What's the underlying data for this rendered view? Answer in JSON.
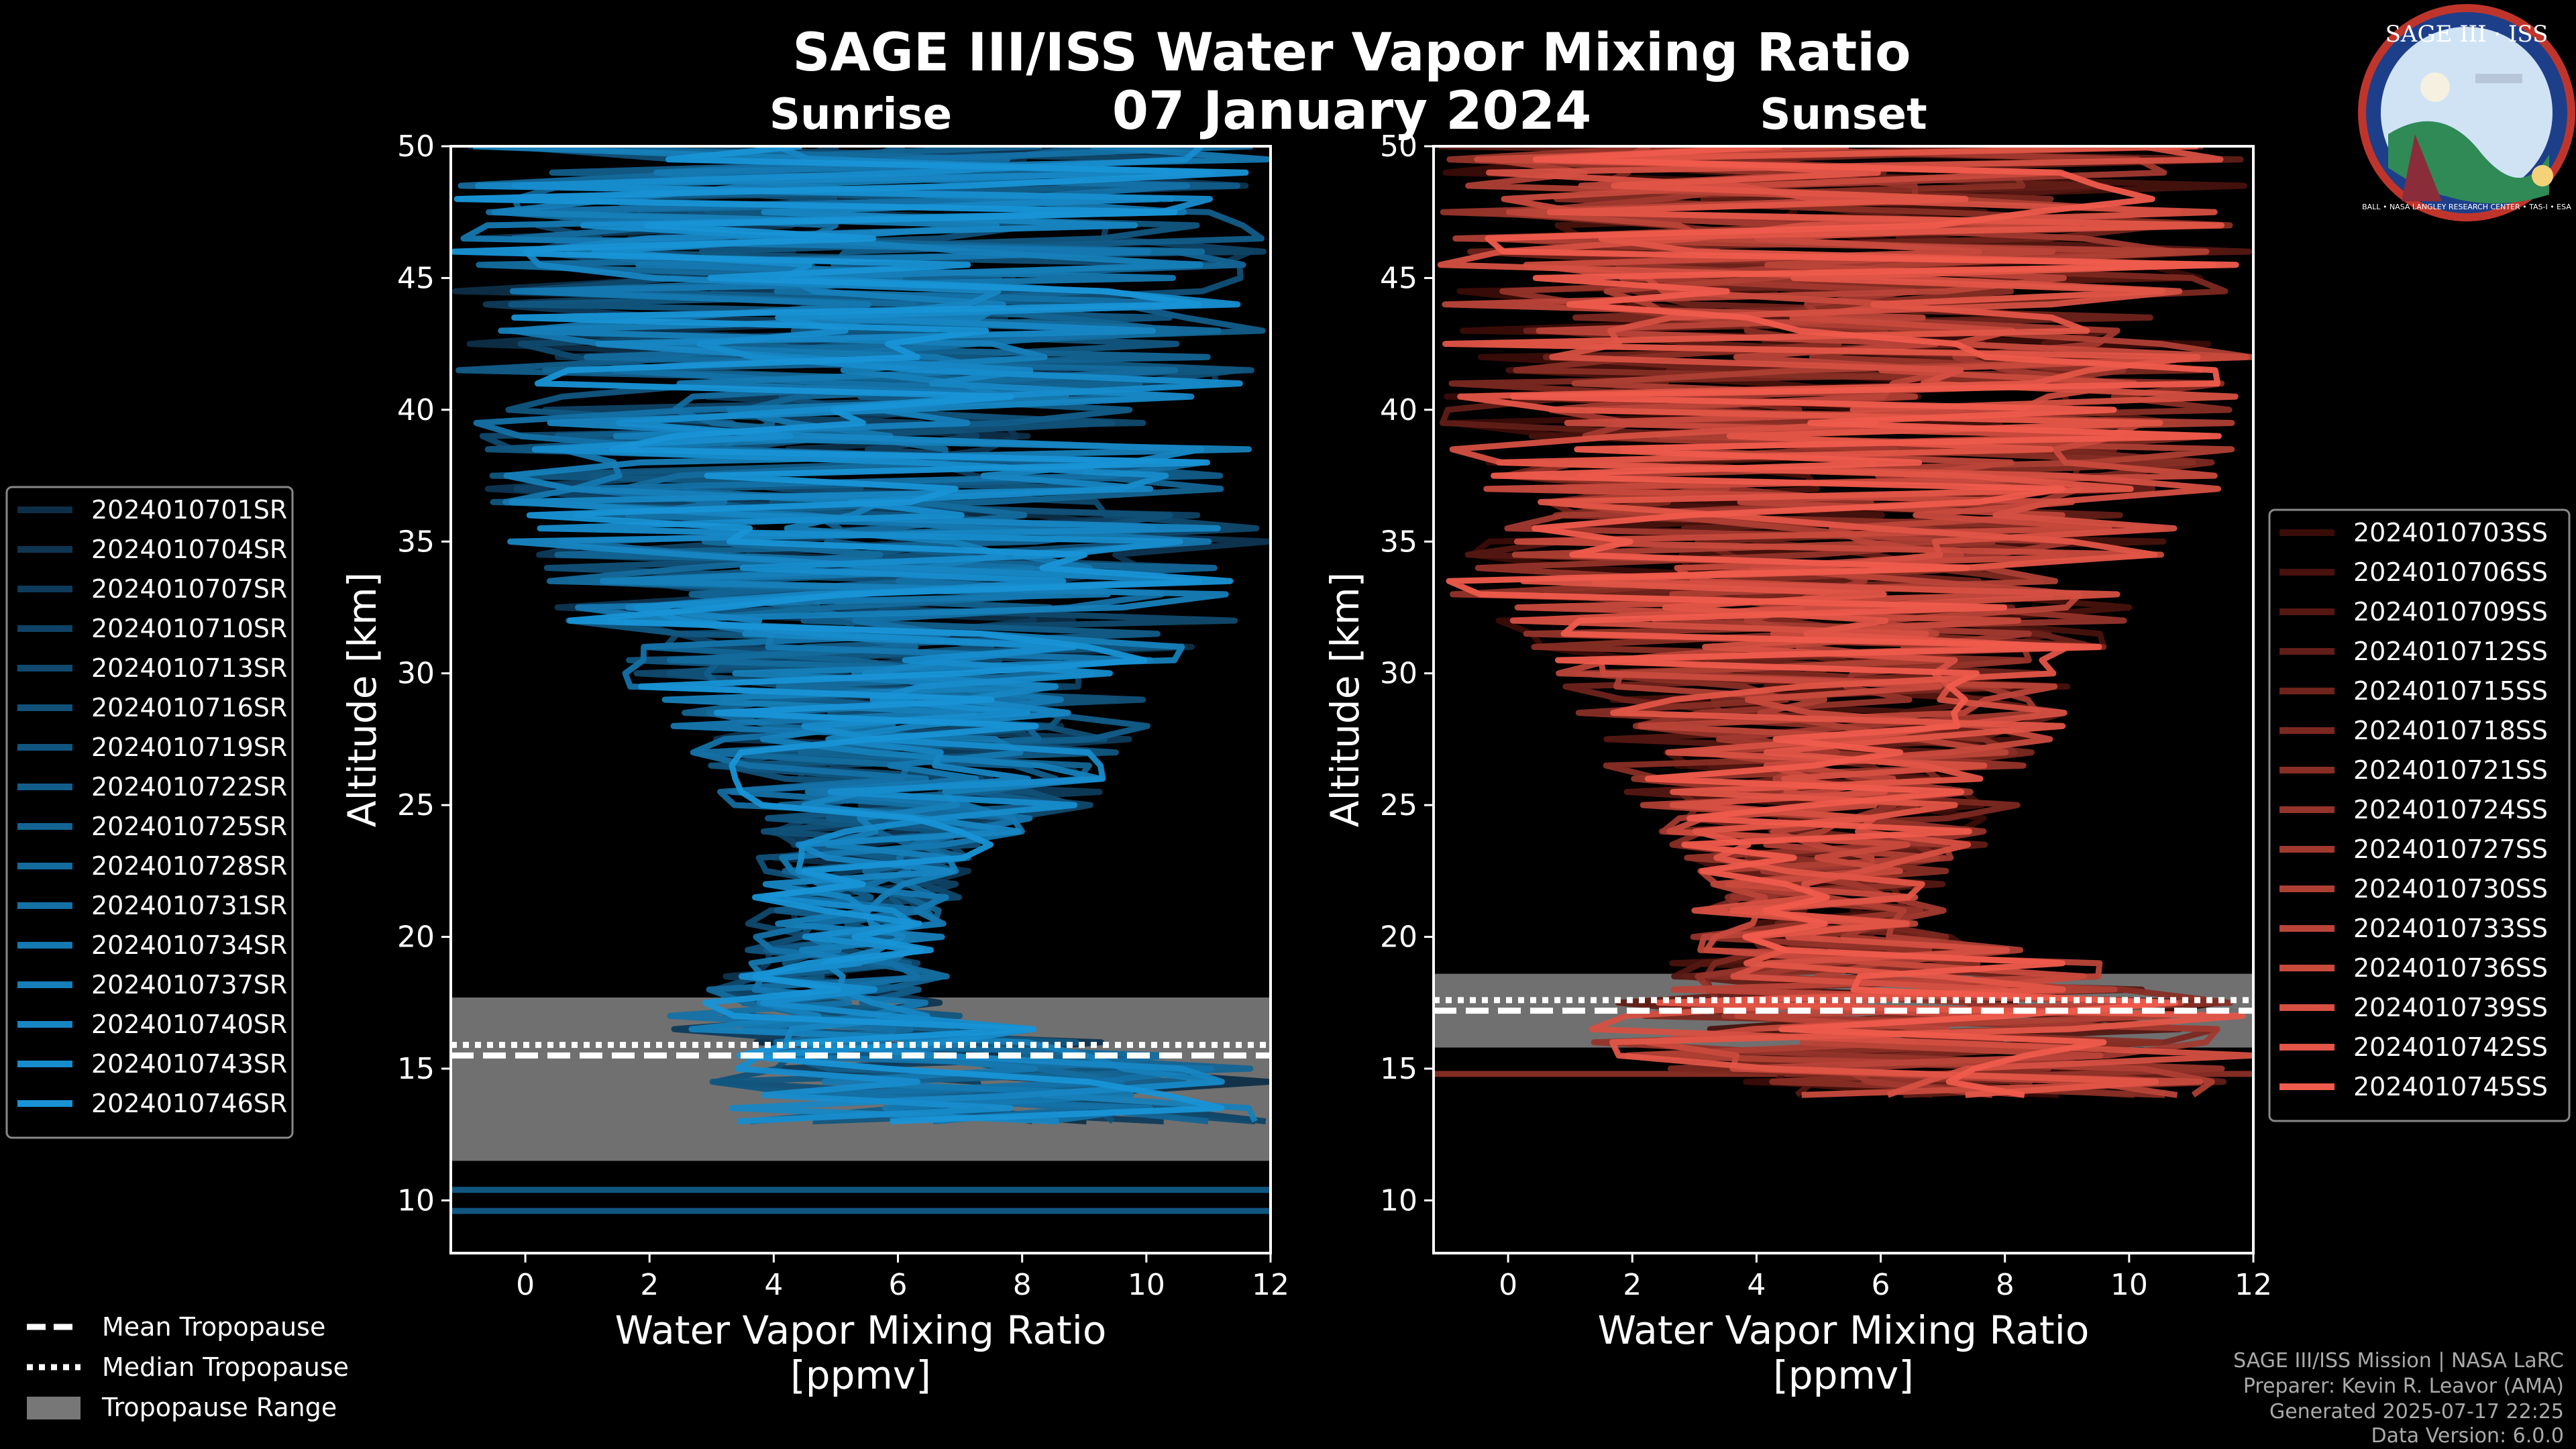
{
  "chart_data": {
    "title": "SAGE III/ISS Water Vapor Mixing Ratio",
    "date_label": "07 January 2024",
    "panels": [
      {
        "type": "line",
        "subtitle": "Sunrise",
        "xlabel": "Water Vapor Mixing Ratio",
        "xlabel_units": "[ppmv]",
        "ylabel": "Altitude [km]",
        "xlim": [
          -1.2,
          12
        ],
        "ylim": [
          8,
          50
        ],
        "xticks": [
          0,
          2,
          4,
          6,
          8,
          10,
          12
        ],
        "yticks": [
          10,
          15,
          20,
          25,
          30,
          35,
          40,
          45,
          50
        ],
        "color_dark": "#0d2e47",
        "color_light": "#1893d6",
        "series": [
          "2024010701SR",
          "2024010704SR",
          "2024010707SR",
          "2024010710SR",
          "2024010713SR",
          "2024010716SR",
          "2024010719SR",
          "2024010722SR",
          "2024010725SR",
          "2024010728SR",
          "2024010731SR",
          "2024010734SR",
          "2024010737SR",
          "2024010740SR",
          "2024010743SR",
          "2024010746SR"
        ],
        "tropopause": {
          "mean": 15.5,
          "median": 15.9,
          "range": [
            11.5,
            17.7
          ]
        },
        "low_levels": [
          10.4,
          9.6
        ],
        "profile_envelope": [
          {
            "alt": 13,
            "min": 3.4,
            "max": 12
          },
          {
            "alt": 15,
            "min": 2.8,
            "max": 12
          },
          {
            "alt": 17,
            "min": 2.2,
            "max": 7.2
          },
          {
            "alt": 19,
            "min": 3.5,
            "max": 6.8
          },
          {
            "alt": 21,
            "min": 3.6,
            "max": 7.0
          },
          {
            "alt": 23,
            "min": 3.6,
            "max": 7.2
          },
          {
            "alt": 25,
            "min": 3.3,
            "max": 9.2
          },
          {
            "alt": 27,
            "min": 2.6,
            "max": 9.8
          },
          {
            "alt": 30,
            "min": 1.5,
            "max": 10.5
          },
          {
            "alt": 33,
            "min": 0.2,
            "max": 12
          },
          {
            "alt": 36,
            "min": -0.5,
            "max": 12
          },
          {
            "alt": 40,
            "min": -1.2,
            "max": 12
          },
          {
            "alt": 45,
            "min": -1.2,
            "max": 12
          },
          {
            "alt": 50,
            "min": -1.2,
            "max": 12
          }
        ]
      },
      {
        "type": "line",
        "subtitle": "Sunset",
        "xlabel": "Water Vapor Mixing Ratio",
        "xlabel_units": "[ppmv]",
        "ylabel": "Altitude [km]",
        "xlim": [
          -1.2,
          12
        ],
        "ylim": [
          8,
          50
        ],
        "xticks": [
          0,
          2,
          4,
          6,
          8,
          10,
          12
        ],
        "yticks": [
          10,
          15,
          20,
          25,
          30,
          35,
          40,
          45,
          50
        ],
        "color_dark": "#3a0c08",
        "color_light": "#ef5b4c",
        "series": [
          "2024010703SS",
          "2024010706SS",
          "2024010709SS",
          "2024010712SS",
          "2024010715SS",
          "2024010718SS",
          "2024010721SS",
          "2024010724SS",
          "2024010727SS",
          "2024010730SS",
          "2024010733SS",
          "2024010736SS",
          "2024010739SS",
          "2024010742SS",
          "2024010745SS"
        ],
        "tropopause": {
          "mean": 17.2,
          "median": 17.6,
          "range": [
            15.8,
            18.6
          ]
        },
        "low_levels": [
          14.8
        ],
        "profile_envelope": [
          {
            "alt": 14,
            "min": 4.0,
            "max": 12
          },
          {
            "alt": 16,
            "min": 1.0,
            "max": 12
          },
          {
            "alt": 18,
            "min": 1.8,
            "max": 12
          },
          {
            "alt": 20,
            "min": 2.8,
            "max": 7.2
          },
          {
            "alt": 22,
            "min": 3.2,
            "max": 7.0
          },
          {
            "alt": 24,
            "min": 2.4,
            "max": 8.0
          },
          {
            "alt": 27,
            "min": 1.4,
            "max": 8.8
          },
          {
            "alt": 30,
            "min": 0.8,
            "max": 9.2
          },
          {
            "alt": 33,
            "min": -1.2,
            "max": 10.5
          },
          {
            "alt": 36,
            "min": -0.5,
            "max": 11.5
          },
          {
            "alt": 40,
            "min": -1.2,
            "max": 12
          },
          {
            "alt": 45,
            "min": -1.2,
            "max": 12
          },
          {
            "alt": 50,
            "min": -1.2,
            "max": 12
          }
        ]
      }
    ],
    "legend_tropopause": {
      "mean": "Mean Tropopause",
      "median": "Median Tropopause",
      "range": "Tropopause Range"
    }
  },
  "logo": {
    "title": "SAGE III · ISS",
    "ring_text": "BALL • NASA LANGLEY RESEARCH CENTER • TAS-I • ESA"
  },
  "footer": {
    "line1": "SAGE III/ISS Mission | NASA LaRC",
    "line2": "Preparer: Kevin R. Leavor (AMA)",
    "line3": "Generated 2025-07-17 22:25",
    "line4": "Data Version: 6.0.0"
  }
}
